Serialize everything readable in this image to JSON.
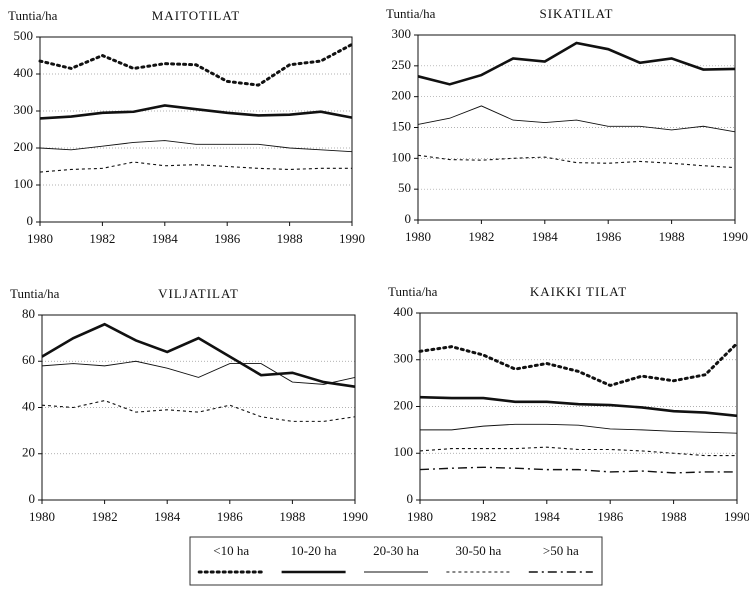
{
  "chart_data": [
    {
      "type": "line",
      "title": "MAITOTILAT",
      "y_label": "Tuntia/ha",
      "x": [
        1980,
        1981,
        1982,
        1983,
        1984,
        1985,
        1986,
        1987,
        1988,
        1989,
        1990
      ],
      "xlim": [
        1980,
        1990
      ],
      "xticks": [
        1980,
        1982,
        1984,
        1986,
        1988,
        1990
      ],
      "ylim": [
        0,
        500
      ],
      "yticks": [
        0,
        100,
        200,
        300,
        400,
        500
      ],
      "grid": true,
      "series": [
        {
          "color": "#111",
          "dash": "dotted-bold",
          "values": [
            435,
            415,
            450,
            415,
            428,
            425,
            380,
            370,
            425,
            435,
            480
          ]
        },
        {
          "color": "#111",
          "dash": "solid-bold",
          "values": [
            280,
            285,
            295,
            298,
            315,
            305,
            295,
            288,
            290,
            298,
            282
          ]
        },
        {
          "color": "#111",
          "dash": "solid-thin",
          "values": [
            200,
            195,
            205,
            215,
            220,
            210,
            210,
            210,
            200,
            195,
            190
          ]
        },
        {
          "color": "#111",
          "dash": "dashed-thin",
          "values": [
            135,
            142,
            145,
            162,
            152,
            155,
            150,
            145,
            142,
            145,
            145
          ]
        }
      ]
    },
    {
      "type": "line",
      "title": "SIKATILAT",
      "y_label": "Tuntia/ha",
      "x": [
        1980,
        1981,
        1982,
        1983,
        1984,
        1985,
        1986,
        1987,
        1988,
        1989,
        1990
      ],
      "xlim": [
        1980,
        1990
      ],
      "xticks": [
        1980,
        1982,
        1984,
        1986,
        1988,
        1990
      ],
      "ylim": [
        0,
        300
      ],
      "yticks": [
        0,
        50,
        100,
        150,
        200,
        250,
        300
      ],
      "grid": true,
      "series": [
        {
          "color": "#111",
          "dash": "solid-bold",
          "values": [
            233,
            220,
            235,
            262,
            257,
            287,
            277,
            255,
            262,
            244,
            245
          ]
        },
        {
          "color": "#111",
          "dash": "solid-thin",
          "values": [
            155,
            165,
            185,
            162,
            158,
            162,
            152,
            152,
            146,
            152,
            143
          ]
        },
        {
          "color": "#111",
          "dash": "dashed-thin",
          "values": [
            105,
            98,
            97,
            100,
            102,
            93,
            92,
            95,
            92,
            88,
            85
          ]
        }
      ]
    },
    {
      "type": "line",
      "title": "VILJATILAT",
      "y_label": "Tuntia/ha",
      "x": [
        1980,
        1981,
        1982,
        1983,
        1984,
        1985,
        1986,
        1987,
        1988,
        1989,
        1990
      ],
      "xlim": [
        1980,
        1990
      ],
      "xticks": [
        1980,
        1982,
        1984,
        1986,
        1988,
        1990
      ],
      "ylim": [
        0,
        80
      ],
      "yticks": [
        0,
        20,
        40,
        60,
        80
      ],
      "grid": true,
      "series": [
        {
          "color": "#111",
          "dash": "solid-bold",
          "values": [
            62,
            70,
            76,
            69,
            64,
            70,
            62,
            54,
            55,
            51,
            49
          ]
        },
        {
          "color": "#111",
          "dash": "solid-thin",
          "values": [
            58,
            59,
            58,
            60,
            57,
            53,
            59,
            59,
            51,
            50,
            53
          ]
        },
        {
          "color": "#111",
          "dash": "dashed-thin",
          "values": [
            41,
            40,
            43,
            38,
            39,
            38,
            41,
            36,
            34,
            34,
            36
          ]
        }
      ]
    },
    {
      "type": "line",
      "title": "KAIKKI TILAT",
      "y_label": "Tuntia/ha",
      "x": [
        1980,
        1981,
        1982,
        1983,
        1984,
        1985,
        1986,
        1987,
        1988,
        1989,
        1990
      ],
      "xlim": [
        1980,
        1990
      ],
      "xticks": [
        1980,
        1982,
        1984,
        1986,
        1988,
        1990
      ],
      "ylim": [
        0,
        400
      ],
      "yticks": [
        0,
        100,
        200,
        300,
        400
      ],
      "grid": true,
      "series": [
        {
          "name": "<10 ha",
          "color": "#111",
          "dash": "dotted-bold",
          "values": [
            318,
            328,
            310,
            280,
            292,
            275,
            245,
            265,
            255,
            268,
            335
          ]
        },
        {
          "name": "10-20 ha",
          "color": "#111",
          "dash": "solid-bold",
          "values": [
            220,
            218,
            218,
            210,
            210,
            205,
            203,
            198,
            190,
            187,
            180
          ]
        },
        {
          "name": "20-30 ha",
          "color": "#111",
          "dash": "solid-thin",
          "values": [
            150,
            150,
            158,
            162,
            162,
            160,
            152,
            150,
            147,
            145,
            143
          ]
        },
        {
          "name": "30-50 ha",
          "color": "#111",
          "dash": "dashed-thin",
          "values": [
            105,
            110,
            110,
            110,
            113,
            108,
            108,
            105,
            100,
            95,
            95
          ]
        },
        {
          "name": ">50 ha",
          "color": "#111",
          "dash": "dash-dot",
          "values": [
            65,
            68,
            70,
            68,
            65,
            65,
            60,
            62,
            58,
            60,
            60
          ]
        }
      ]
    }
  ]
}
